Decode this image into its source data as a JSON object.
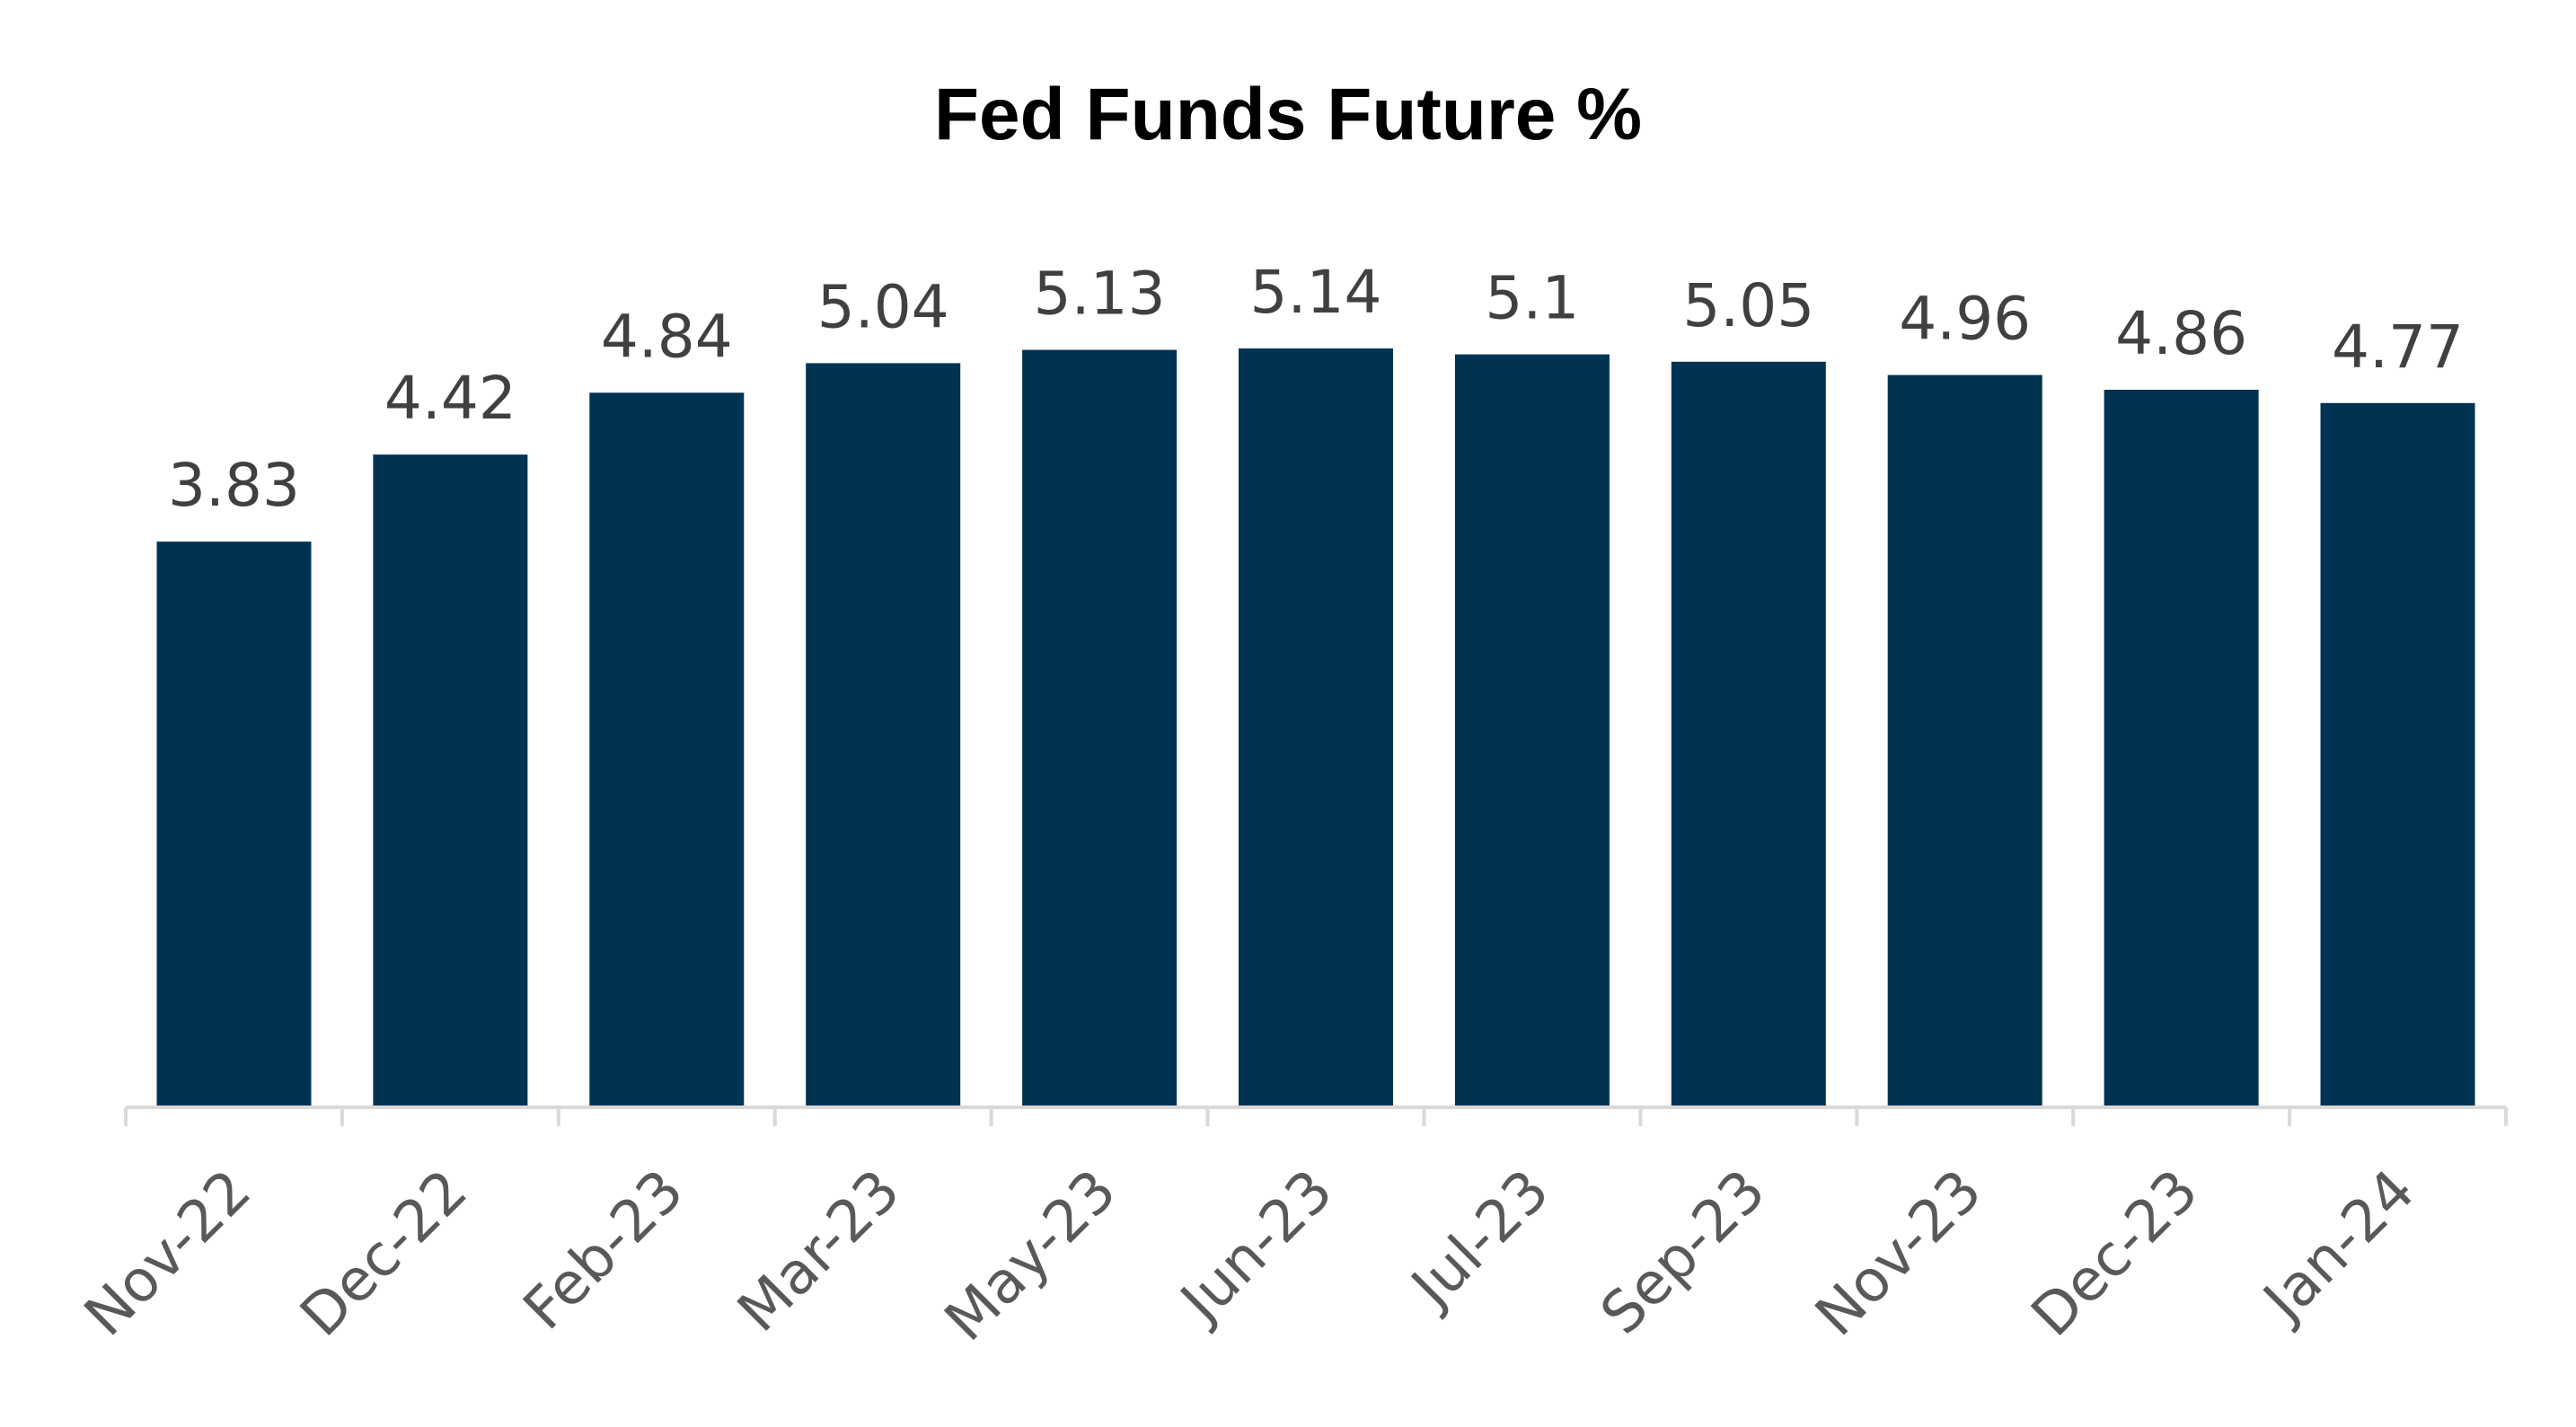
{
  "chart_data": {
    "type": "bar",
    "title": "Fed Funds Future %",
    "xlabel": "",
    "ylabel": "",
    "categories": [
      "Nov-22",
      "Dec-22",
      "Feb-23",
      "Mar-23",
      "May-23",
      "Jun-23",
      "Jul-23",
      "Sep-23",
      "Nov-23",
      "Dec-23",
      "Jan-24"
    ],
    "values": [
      3.83,
      4.42,
      4.84,
      5.04,
      5.13,
      5.14,
      5.1,
      5.05,
      4.96,
      4.86,
      4.77
    ],
    "data_labels": [
      "3.83",
      "4.42",
      "4.84",
      "5.04",
      "5.13",
      "5.14",
      "5.1",
      "5.05",
      "4.96",
      "4.86",
      "4.77"
    ],
    "ylim": [
      0,
      5.14
    ],
    "grid": false,
    "legend": "none",
    "colors": {
      "bar": "#003352",
      "axis": "#d9d9d9",
      "data_label": "#404040",
      "tick_label": "#595959",
      "title": "#000000"
    }
  }
}
